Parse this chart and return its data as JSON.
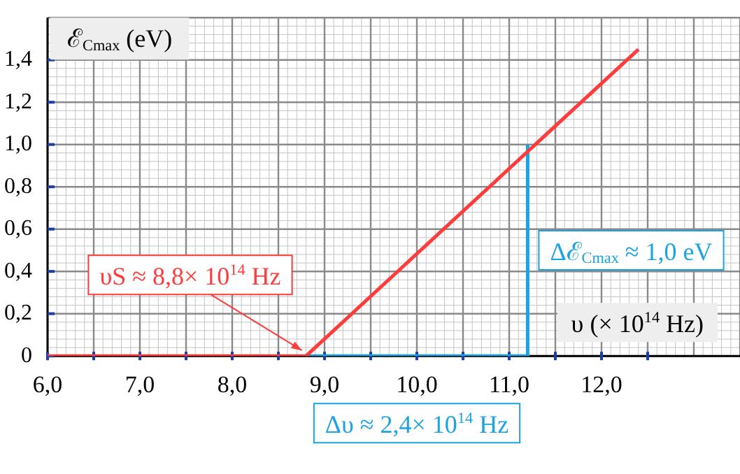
{
  "chart_data": {
    "type": "line",
    "xlabel": "υ (× 10$^{14}$ Hz)",
    "ylabel": "ℰ$_{Cmax}$ (eV)",
    "series": [
      {
        "color": "#ff3b3b",
        "x": [
          6.0,
          8.8,
          12.4
        ],
        "values": [
          0,
          0,
          1.45
        ]
      },
      {
        "color": "#1aa3e0",
        "x": [
          8.8,
          11.2,
          11.2
        ],
        "values": [
          0,
          0,
          1.0
        ]
      }
    ],
    "xlim": [
      6.0,
      13.5
    ],
    "ylim": [
      0,
      1.6
    ],
    "xticks": [
      {
        "value": 6.0,
        "label": "6,0"
      },
      {
        "value": 6.5,
        "label": null
      },
      {
        "value": 7.0,
        "label": "7,0"
      },
      {
        "value": 7.5,
        "label": null
      },
      {
        "value": 8.0,
        "label": "8,0"
      },
      {
        "value": 8.5,
        "label": null
      },
      {
        "value": 9.0,
        "label": "9,0"
      },
      {
        "value": 9.5,
        "label": null
      },
      {
        "value": 10.0,
        "label": "10,0"
      },
      {
        "value": 10.5,
        "label": null
      },
      {
        "value": 11.0,
        "label": "11,0"
      },
      {
        "value": 11.5,
        "label": null
      },
      {
        "value": 12.0,
        "label": "12,0"
      },
      {
        "value": 12.5,
        "label": null
      }
    ],
    "yticks": [
      0,
      {
        "value": 0.2,
        "label": "0,2"
      },
      {
        "value": 0.4,
        "label": "0,4"
      },
      {
        "value": 0.6,
        "label": "0,6"
      },
      {
        "value": 0.8,
        "label": "0,8"
      },
      {
        "value": 1.0,
        "label": "1,0"
      },
      {
        "value": 1.2,
        "label": "1,2"
      },
      {
        "value": 1.4,
        "label": "1,4"
      }
    ],
    "grid": true,
    "marker": "none",
    "line_style": "solid",
    "annotations": [
      {
        "text": "υS ≈ 8,8× 10$^{14}$ Hz",
        "x": 8.8,
        "y": 0
      },
      {
        "text": "Δℰ$_{Cmax}$ ≈ 1,0 eV",
        "x": 11.2,
        "y": 0.5
      },
      {
        "text": "Δυ ≈ 2,4× 10$^{14}$ Hz",
        "x": 10.0,
        "y": 0
      }
    ]
  }
}
